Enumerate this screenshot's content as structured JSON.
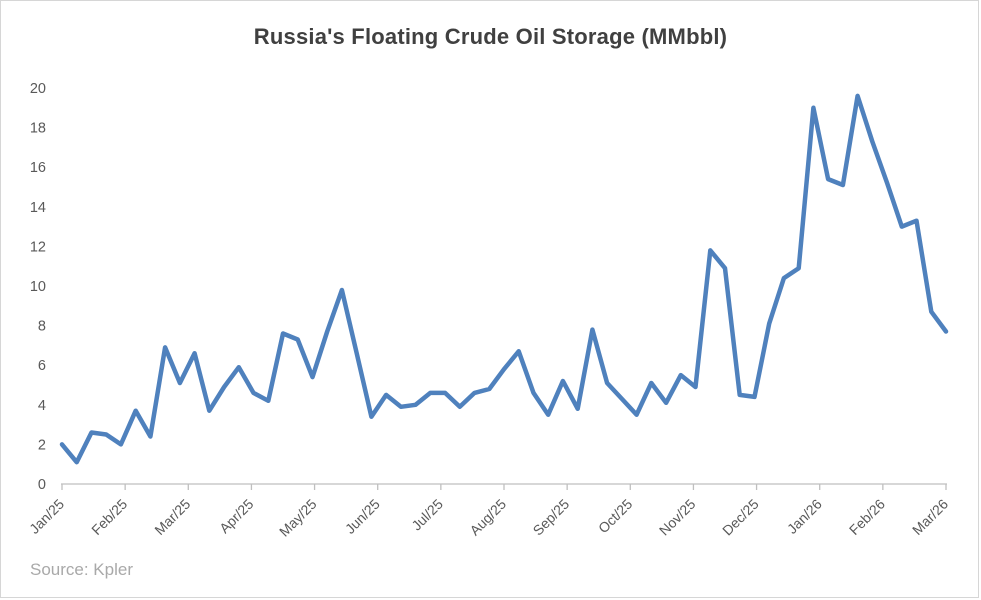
{
  "title": "Russia's Floating Crude Oil Storage (MMbbl)",
  "source": "Source: Kpler",
  "colors": {
    "line": "#4F81BD",
    "axis_line": "#BFBFBF",
    "tick_label": "#595959",
    "title_text": "#404040",
    "source_text": "#A9A9A9",
    "frame_border": "#D6D6D6"
  },
  "chart_data": {
    "type": "line",
    "title": "Russia's Floating Crude Oil Storage (MMbbl)",
    "source": "Source: Kpler",
    "frequency": "weekly",
    "grid": "off",
    "legend": "none",
    "ylim": [
      0,
      20
    ],
    "y_tick_labels": [
      0,
      2,
      4,
      6,
      8,
      10,
      12,
      14,
      16,
      18,
      20
    ],
    "x_tick_labels": [
      "Jan/25",
      "Feb/25",
      "Mar/25",
      "Apr/25",
      "May/25",
      "Jun/25",
      "Jul/25",
      "Aug/25",
      "Sep/25",
      "Oct/25",
      "Nov/25",
      "Dec/25",
      "Jan/26",
      "Feb/26",
      "Mar/26"
    ],
    "series": [
      {
        "name": "Russia floating crude oil storage (MMbbl)",
        "values": [
          2.0,
          1.1,
          2.6,
          2.5,
          2.0,
          3.7,
          2.4,
          6.9,
          5.1,
          6.6,
          3.7,
          4.9,
          5.9,
          4.6,
          4.2,
          7.6,
          7.3,
          5.4,
          7.7,
          9.8,
          6.6,
          3.4,
          4.5,
          3.9,
          4.0,
          4.6,
          4.6,
          3.9,
          4.6,
          4.8,
          5.8,
          6.7,
          4.6,
          3.5,
          5.2,
          3.8,
          7.8,
          5.1,
          4.3,
          3.5,
          5.1,
          4.1,
          5.5,
          4.9,
          11.8,
          10.9,
          4.5,
          4.4,
          8.1,
          10.4,
          10.9,
          19.0,
          15.4,
          15.1,
          19.6,
          17.3,
          15.2,
          13.0,
          13.3,
          8.7,
          7.7
        ]
      }
    ]
  }
}
